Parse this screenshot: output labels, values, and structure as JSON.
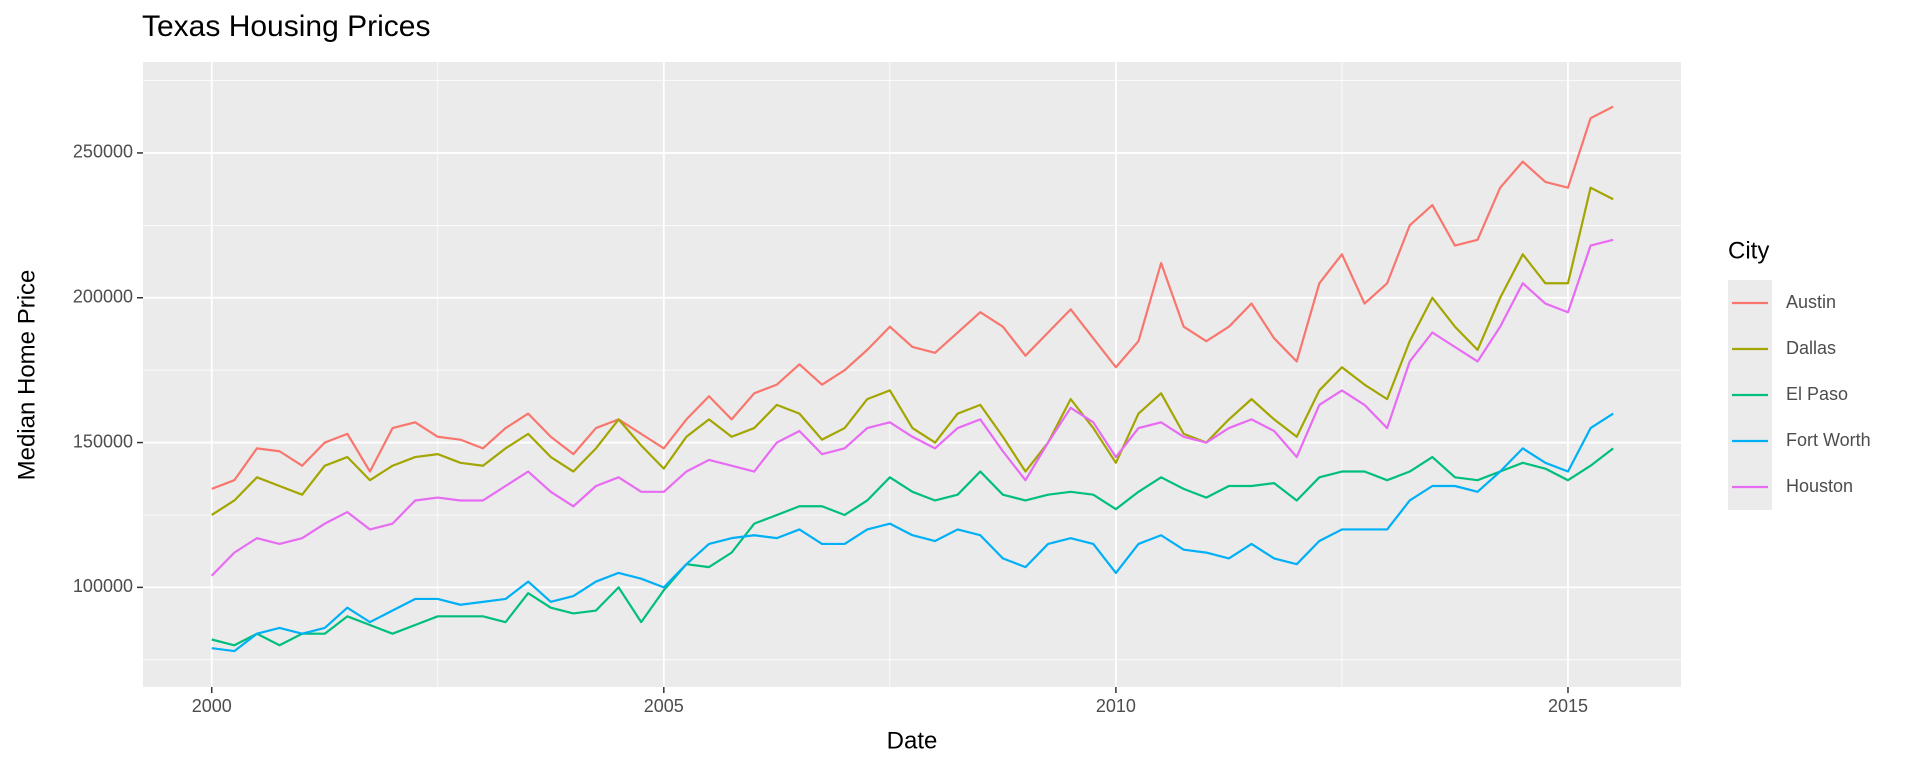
{
  "chart_data": {
    "type": "line",
    "title": "Texas Housing Prices",
    "x_label": "Date",
    "y_label": "Median Home Price",
    "legend_title": "City",
    "legend_position": "right",
    "grid": true,
    "xlim": [
      1999.24,
      2016.25
    ],
    "xticks": [
      2000,
      2005,
      2010,
      2015
    ],
    "ylim": [
      65600,
      281400
    ],
    "yticks": [
      100000,
      150000,
      200000,
      250000
    ],
    "x": [
      2000,
      2000.25,
      2000.5,
      2000.75,
      2001,
      2001.25,
      2001.5,
      2001.75,
      2002,
      2002.25,
      2002.5,
      2002.75,
      2003,
      2003.25,
      2003.5,
      2003.75,
      2004,
      2004.25,
      2004.5,
      2004.75,
      2005,
      2005.25,
      2005.5,
      2005.75,
      2006,
      2006.25,
      2006.5,
      2006.75,
      2007,
      2007.25,
      2007.5,
      2007.75,
      2008,
      2008.25,
      2008.5,
      2008.75,
      2009,
      2009.25,
      2009.5,
      2009.75,
      2010,
      2010.25,
      2010.5,
      2010.75,
      2011,
      2011.25,
      2011.5,
      2011.75,
      2012,
      2012.25,
      2012.5,
      2012.75,
      2013,
      2013.25,
      2013.5,
      2013.75,
      2014,
      2014.25,
      2014.5,
      2014.75,
      2015,
      2015.25,
      2015.5
    ],
    "series": [
      {
        "name": "Austin",
        "color": "#F8766D",
        "values": [
          134000,
          137000,
          148000,
          147000,
          142000,
          150000,
          153000,
          140000,
          155000,
          157000,
          152000,
          151000,
          148000,
          155000,
          160000,
          152000,
          146000,
          155000,
          158000,
          153000,
          148000,
          158000,
          166000,
          158000,
          167000,
          170000,
          177000,
          170000,
          175000,
          182000,
          190000,
          183000,
          181000,
          188000,
          195000,
          190000,
          180000,
          188000,
          196000,
          186000,
          176000,
          185000,
          212000,
          190000,
          185000,
          190000,
          198000,
          186000,
          178000,
          205000,
          215000,
          198000,
          205000,
          225000,
          232000,
          218000,
          220000,
          238000,
          247000,
          240000,
          238000,
          262000,
          266000
        ]
      },
      {
        "name": "Dallas",
        "color": "#A3A500",
        "values": [
          125000,
          130000,
          138000,
          135000,
          132000,
          142000,
          145000,
          137000,
          142000,
          145000,
          146000,
          143000,
          142000,
          148000,
          153000,
          145000,
          140000,
          148000,
          158000,
          149000,
          141000,
          152000,
          158000,
          152000,
          155000,
          163000,
          160000,
          151000,
          155000,
          165000,
          168000,
          155000,
          150000,
          160000,
          163000,
          152000,
          140000,
          150000,
          165000,
          155000,
          143000,
          160000,
          167000,
          153000,
          150000,
          158000,
          165000,
          158000,
          152000,
          168000,
          176000,
          170000,
          165000,
          185000,
          200000,
          190000,
          182000,
          200000,
          215000,
          205000,
          205000,
          238000,
          234000
        ]
      },
      {
        "name": "El Paso",
        "color": "#00BF7D",
        "values": [
          82000,
          80000,
          84000,
          80000,
          84000,
          84000,
          90000,
          87000,
          84000,
          87000,
          90000,
          90000,
          90000,
          88000,
          98000,
          93000,
          91000,
          92000,
          100000,
          88000,
          99000,
          108000,
          107000,
          112000,
          122000,
          125000,
          128000,
          128000,
          125000,
          130000,
          138000,
          133000,
          130000,
          132000,
          140000,
          132000,
          130000,
          132000,
          133000,
          132000,
          127000,
          133000,
          138000,
          134000,
          131000,
          135000,
          135000,
          136000,
          130000,
          138000,
          140000,
          140000,
          137000,
          140000,
          145000,
          138000,
          137000,
          140000,
          143000,
          141000,
          137000,
          142000,
          148000
        ]
      },
      {
        "name": "Fort Worth",
        "color": "#00B0F6",
        "values": [
          79000,
          78000,
          84000,
          86000,
          84000,
          86000,
          93000,
          88000,
          92000,
          96000,
          96000,
          94000,
          95000,
          96000,
          102000,
          95000,
          97000,
          102000,
          105000,
          103000,
          100000,
          108000,
          115000,
          117000,
          118000,
          117000,
          120000,
          115000,
          115000,
          120000,
          122000,
          118000,
          116000,
          120000,
          118000,
          110000,
          107000,
          115000,
          117000,
          115000,
          105000,
          115000,
          118000,
          113000,
          112000,
          110000,
          115000,
          110000,
          108000,
          116000,
          120000,
          120000,
          120000,
          130000,
          135000,
          135000,
          133000,
          140000,
          148000,
          143000,
          140000,
          155000,
          160000
        ]
      },
      {
        "name": "Houston",
        "color": "#E76BF3",
        "values": [
          104000,
          112000,
          117000,
          115000,
          117000,
          122000,
          126000,
          120000,
          122000,
          130000,
          131000,
          130000,
          130000,
          135000,
          140000,
          133000,
          128000,
          135000,
          138000,
          133000,
          133000,
          140000,
          144000,
          142000,
          140000,
          150000,
          154000,
          146000,
          148000,
          155000,
          157000,
          152000,
          148000,
          155000,
          158000,
          147000,
          137000,
          150000,
          162000,
          157000,
          145000,
          155000,
          157000,
          152000,
          150000,
          155000,
          158000,
          154000,
          145000,
          163000,
          168000,
          163000,
          155000,
          178000,
          188000,
          183000,
          178000,
          190000,
          205000,
          198000,
          195000,
          218000,
          220000
        ]
      }
    ]
  }
}
